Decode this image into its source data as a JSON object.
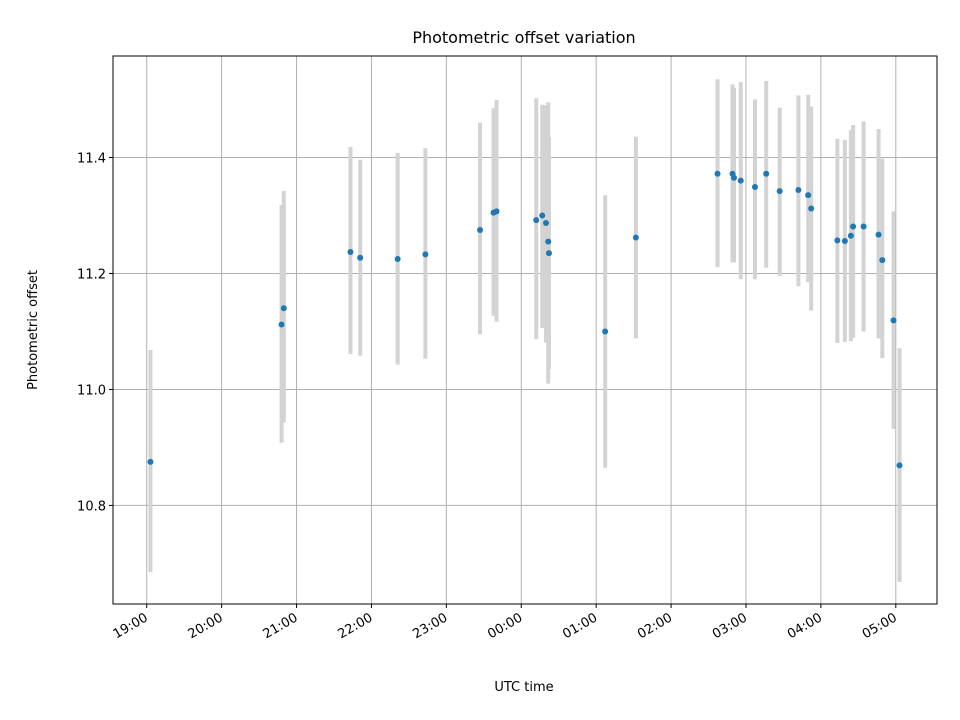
{
  "chart_data": {
    "type": "scatter",
    "title": "Photometric offset variation",
    "xlabel": "UTC time",
    "ylabel": "Photometric offset",
    "x_unit": "hours since 19:00 UTC (axis shows clock time)",
    "xlim": [
      -0.45,
      10.55
    ],
    "ylim": [
      10.63,
      11.575
    ],
    "grid": true,
    "x_ticks": [
      {
        "value": 0,
        "label": "19:00"
      },
      {
        "value": 1,
        "label": "20:00"
      },
      {
        "value": 2,
        "label": "21:00"
      },
      {
        "value": 3,
        "label": "22:00"
      },
      {
        "value": 4,
        "label": "23:00"
      },
      {
        "value": 5,
        "label": "00:00"
      },
      {
        "value": 6,
        "label": "01:00"
      },
      {
        "value": 7,
        "label": "02:00"
      },
      {
        "value": 8,
        "label": "03:00"
      },
      {
        "value": 9,
        "label": "04:00"
      },
      {
        "value": 10,
        "label": "05:00"
      }
    ],
    "y_ticks": [
      {
        "value": 10.8,
        "label": "10.8"
      },
      {
        "value": 11.0,
        "label": "11.0"
      },
      {
        "value": 11.2,
        "label": "11.2"
      },
      {
        "value": 11.4,
        "label": "11.4"
      }
    ],
    "marker_color": "#1f77b4",
    "errorbar_color": "#d3d3d3",
    "points": [
      {
        "x": 0.05,
        "y": 10.875,
        "err_lo": 10.685,
        "err_hi": 11.068
      },
      {
        "x": 1.8,
        "y": 11.112,
        "err_lo": 10.908,
        "err_hi": 11.318
      },
      {
        "x": 1.83,
        "y": 11.14,
        "err_lo": 10.943,
        "err_hi": 11.342
      },
      {
        "x": 2.72,
        "y": 11.237,
        "err_lo": 11.061,
        "err_hi": 11.418
      },
      {
        "x": 2.85,
        "y": 11.227,
        "err_lo": 11.058,
        "err_hi": 11.396
      },
      {
        "x": 3.35,
        "y": 11.225,
        "err_lo": 11.043,
        "err_hi": 11.408
      },
      {
        "x": 3.72,
        "y": 11.233,
        "err_lo": 11.053,
        "err_hi": 11.416
      },
      {
        "x": 4.45,
        "y": 11.275,
        "err_lo": 11.095,
        "err_hi": 11.46
      },
      {
        "x": 4.63,
        "y": 11.305,
        "err_lo": 11.127,
        "err_hi": 11.485
      },
      {
        "x": 4.67,
        "y": 11.307,
        "err_lo": 11.117,
        "err_hi": 11.499
      },
      {
        "x": 5.2,
        "y": 11.292,
        "err_lo": 11.087,
        "err_hi": 11.502
      },
      {
        "x": 5.28,
        "y": 11.3,
        "err_lo": 11.106,
        "err_hi": 11.491
      },
      {
        "x": 5.33,
        "y": 11.287,
        "err_lo": 11.081,
        "err_hi": 11.49
      },
      {
        "x": 5.36,
        "y": 11.255,
        "err_lo": 11.01,
        "err_hi": 11.495
      },
      {
        "x": 5.37,
        "y": 11.235,
        "err_lo": 11.035,
        "err_hi": 11.435
      },
      {
        "x": 6.12,
        "y": 11.1,
        "err_lo": 10.865,
        "err_hi": 11.335
      },
      {
        "x": 6.53,
        "y": 11.262,
        "err_lo": 11.088,
        "err_hi": 11.436
      },
      {
        "x": 7.62,
        "y": 11.372,
        "err_lo": 11.211,
        "err_hi": 11.535
      },
      {
        "x": 7.82,
        "y": 11.372,
        "err_lo": 11.219,
        "err_hi": 11.526
      },
      {
        "x": 7.84,
        "y": 11.365,
        "err_lo": 11.219,
        "err_hi": 11.52
      },
      {
        "x": 7.93,
        "y": 11.36,
        "err_lo": 11.19,
        "err_hi": 11.53
      },
      {
        "x": 8.12,
        "y": 11.349,
        "err_lo": 11.19,
        "err_hi": 11.5
      },
      {
        "x": 8.27,
        "y": 11.372,
        "err_lo": 11.21,
        "err_hi": 11.532
      },
      {
        "x": 8.45,
        "y": 11.342,
        "err_lo": 11.196,
        "err_hi": 11.486
      },
      {
        "x": 8.7,
        "y": 11.344,
        "err_lo": 11.178,
        "err_hi": 11.507
      },
      {
        "x": 8.83,
        "y": 11.335,
        "err_lo": 11.185,
        "err_hi": 11.508
      },
      {
        "x": 8.87,
        "y": 11.312,
        "err_lo": 11.136,
        "err_hi": 11.488
      },
      {
        "x": 9.22,
        "y": 11.257,
        "err_lo": 11.08,
        "err_hi": 11.432
      },
      {
        "x": 9.32,
        "y": 11.256,
        "err_lo": 11.082,
        "err_hi": 11.43
      },
      {
        "x": 9.4,
        "y": 11.265,
        "err_lo": 11.083,
        "err_hi": 11.447
      },
      {
        "x": 9.43,
        "y": 11.281,
        "err_lo": 11.089,
        "err_hi": 11.456
      },
      {
        "x": 9.57,
        "y": 11.281,
        "err_lo": 11.1,
        "err_hi": 11.462
      },
      {
        "x": 9.77,
        "y": 11.267,
        "err_lo": 11.088,
        "err_hi": 11.449
      },
      {
        "x": 9.82,
        "y": 11.223,
        "err_lo": 11.054,
        "err_hi": 11.398
      },
      {
        "x": 9.97,
        "y": 11.119,
        "err_lo": 10.932,
        "err_hi": 11.307
      },
      {
        "x": 10.05,
        "y": 10.869,
        "err_lo": 10.668,
        "err_hi": 11.071
      }
    ]
  }
}
